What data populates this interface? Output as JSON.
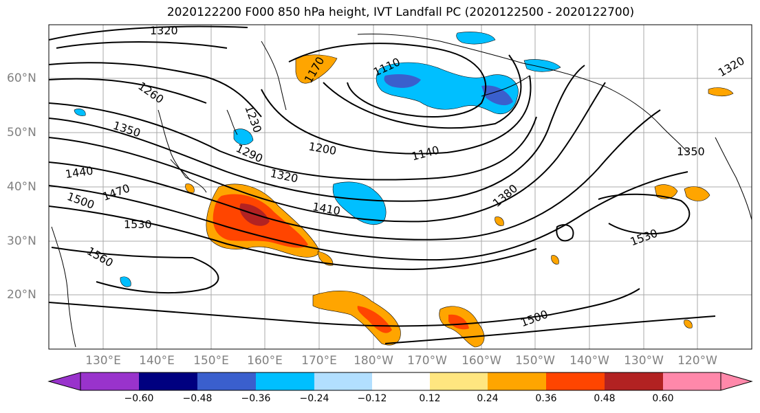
{
  "title": "2020122200 F000 850 hPa height, IVT Landfall PC (2020122500 - 2020122700)",
  "lat_labels": [
    "60°N",
    "50°N",
    "40°N",
    "30°N",
    "20°N"
  ],
  "lon_labels": [
    "130°E",
    "140°E",
    "150°E",
    "160°E",
    "170°E",
    "180°W",
    "170°W",
    "160°W",
    "150°W",
    "140°W",
    "130°W",
    "120°W"
  ],
  "contour_labels": [
    "1320",
    "1110",
    "1170",
    "1260",
    "1230",
    "1350",
    "1290",
    "1200",
    "1140",
    "1440",
    "1320",
    "1470",
    "1380",
    "1500",
    "1410",
    "1530",
    "1530",
    "1560",
    "1500",
    "1350",
    "1320"
  ],
  "colorbar": {
    "colors": [
      "#9933cc",
      "#000080",
      "#3a5fcd",
      "#00bfff",
      "#b2dfff",
      "#ffffff",
      "#ffe680",
      "#ffa500",
      "#ff4500",
      "#b22222",
      "#ff88aa"
    ],
    "ticks": [
      "−0.60",
      "−0.48",
      "−0.36",
      "−0.24",
      "−0.12",
      "0.12",
      "0.24",
      "0.36",
      "0.48",
      "0.60"
    ]
  }
}
